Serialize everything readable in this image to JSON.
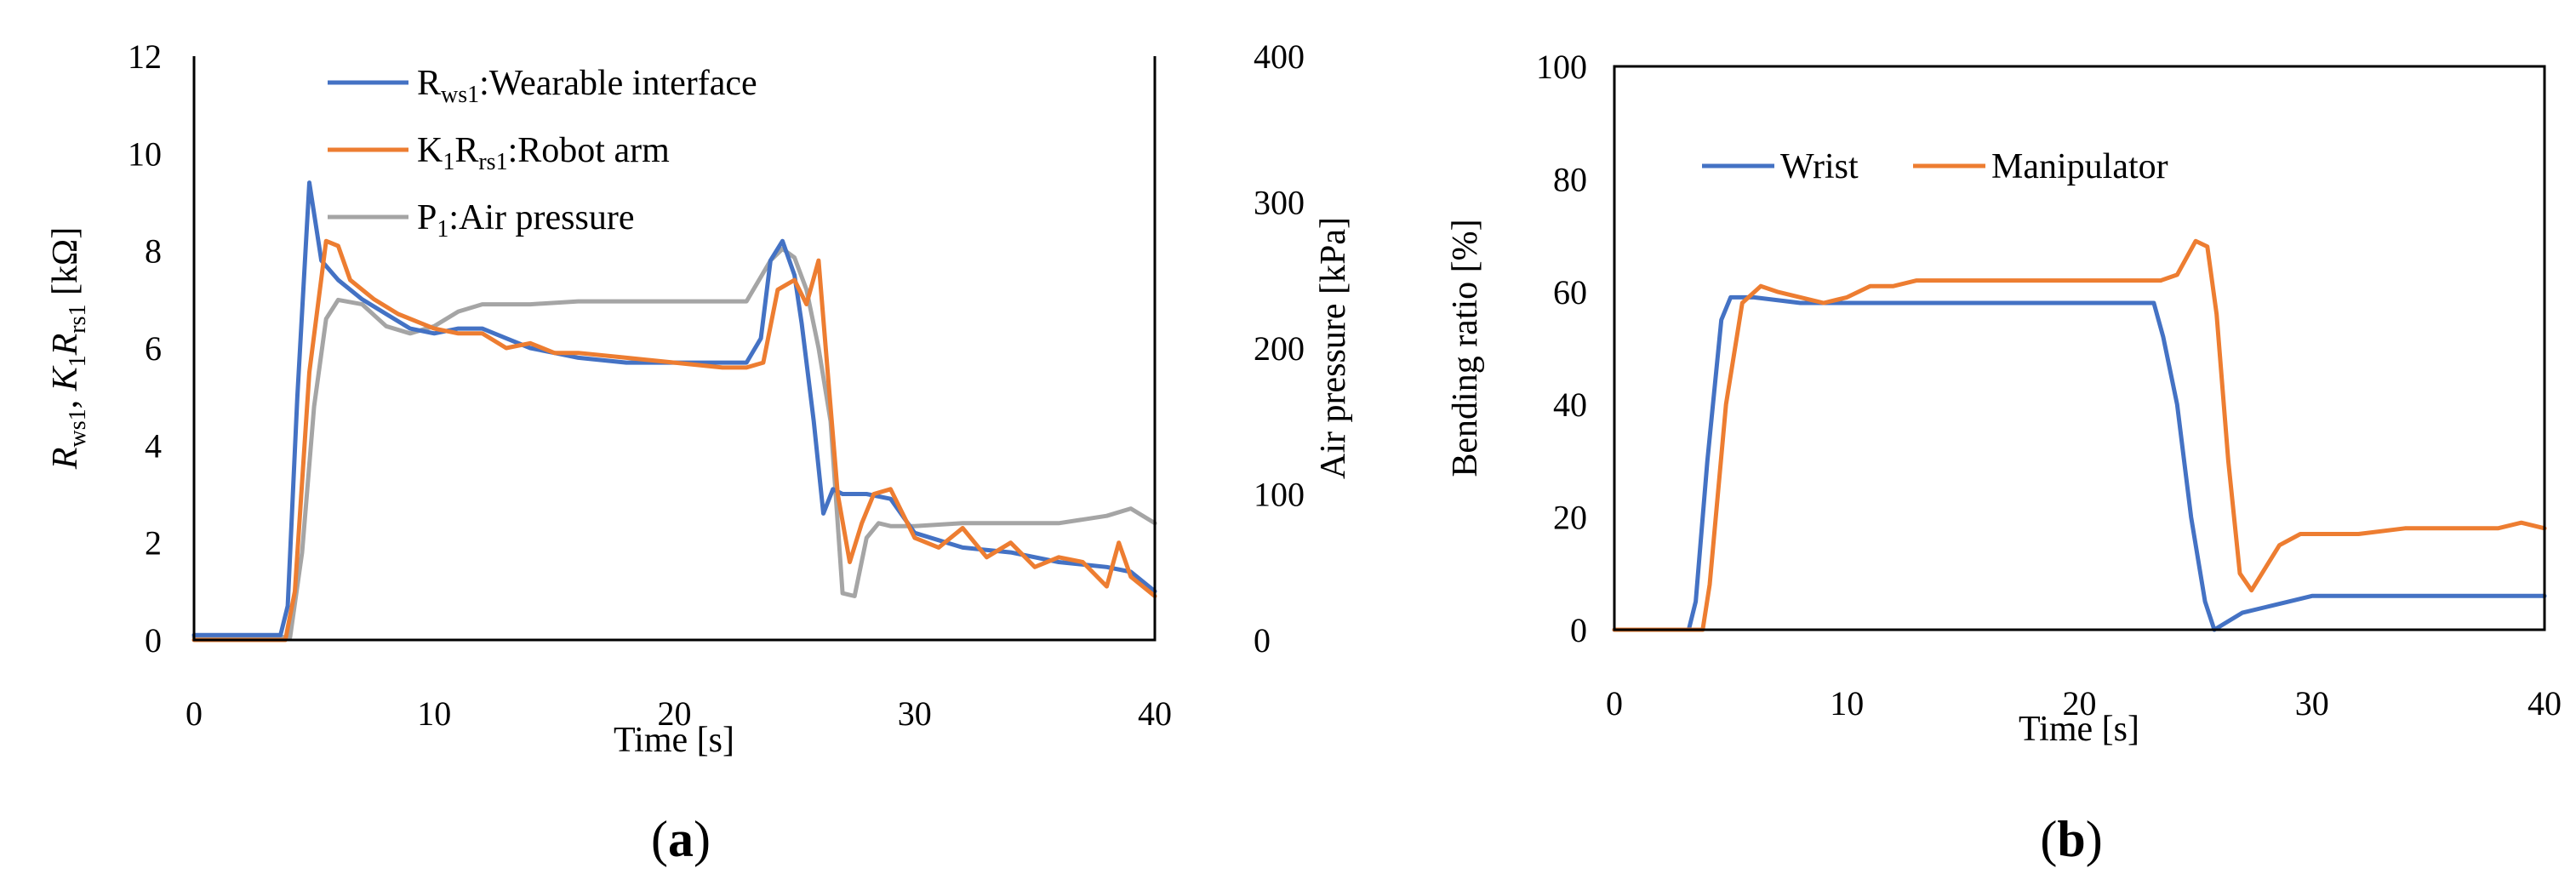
{
  "chart_data": [
    {
      "panel_label_open": "(",
      "panel_label": "a",
      "panel_label_close": ")",
      "type": "line",
      "title": "",
      "xlabel": "Time [s]",
      "ylabel_left": {
        "part1": "R",
        "sub1": "ws1",
        "part2": ", ",
        "part3": "K",
        "sub3": "1",
        "part4": "R",
        "sub4": "rs1",
        "part5": " [kΩ]"
      },
      "ylabel_right": "Air pressure [kPa]",
      "xlim": [
        0,
        40
      ],
      "ylim_left": [
        0,
        12
      ],
      "ylim_right": [
        0,
        400
      ],
      "xticks": [
        "0",
        "10",
        "20",
        "30",
        "40"
      ],
      "yticks_left": [
        "0",
        "2",
        "4",
        "6",
        "8",
        "10",
        "12"
      ],
      "yticks_right": [
        "0",
        "100",
        "200",
        "300",
        "400"
      ],
      "legend_position": "top-center",
      "series": [
        {
          "name": "Rws1:Wearable interface",
          "legend": {
            "main": "R",
            "sub": "ws1",
            "rest": ":Wearable interface"
          },
          "color": "#4472C4",
          "axis": "left",
          "x": [
            0,
            3.6,
            3.9,
            4.3,
            4.8,
            5.3,
            6,
            7,
            8,
            9,
            10,
            11,
            12,
            13,
            14,
            15,
            16,
            18,
            20,
            22,
            23,
            23.6,
            24,
            24.5,
            25,
            25.3,
            25.8,
            26.2,
            26.6,
            27,
            28,
            29,
            30,
            32,
            34,
            36,
            38,
            39,
            40
          ],
          "y": [
            0.1,
            0.1,
            0.7,
            5.0,
            9.4,
            7.8,
            7.4,
            7.0,
            6.7,
            6.4,
            6.3,
            6.4,
            6.4,
            6.2,
            6.0,
            5.9,
            5.8,
            5.7,
            5.7,
            5.7,
            5.7,
            6.2,
            7.8,
            8.2,
            7.5,
            6.5,
            4.5,
            2.6,
            3.1,
            3.0,
            3.0,
            2.9,
            2.2,
            1.9,
            1.8,
            1.6,
            1.5,
            1.4,
            1.0
          ]
        },
        {
          "name": "K1Rrs1:Robot arm",
          "legend": {
            "main": "K",
            "sub": "1",
            "main2": "R",
            "sub2": "rs1",
            "rest": ":Robot arm"
          },
          "color": "#ED7D31",
          "axis": "left",
          "x": [
            0,
            3.8,
            4.2,
            4.8,
            5.5,
            6,
            6.5,
            7.5,
            8.5,
            10,
            11,
            12,
            13,
            14,
            15,
            16,
            18,
            20,
            22,
            23,
            23.7,
            24.3,
            25,
            25.5,
            26,
            26.3,
            26.8,
            27.3,
            27.8,
            28.3,
            29,
            29.5,
            30,
            31,
            32,
            33,
            34,
            35,
            36,
            37,
            38,
            38.5,
            39,
            40
          ],
          "y": [
            0,
            0,
            1.0,
            5.5,
            8.2,
            8.1,
            7.4,
            7.0,
            6.7,
            6.4,
            6.3,
            6.3,
            6.0,
            6.1,
            5.9,
            5.9,
            5.8,
            5.7,
            5.6,
            5.6,
            5.7,
            7.2,
            7.4,
            6.9,
            7.8,
            6.0,
            3.0,
            1.6,
            2.4,
            3.0,
            3.1,
            2.6,
            2.1,
            1.9,
            2.3,
            1.7,
            2.0,
            1.5,
            1.7,
            1.6,
            1.1,
            2.0,
            1.3,
            0.9
          ]
        },
        {
          "name": "P1:Air pressure",
          "legend": {
            "main": "P",
            "sub": "1",
            "rest": ":Air pressure"
          },
          "color": "#A5A5A5",
          "axis": "right",
          "x": [
            0,
            4.0,
            4.5,
            5.0,
            5.5,
            6,
            7,
            8,
            9,
            10,
            11,
            12,
            14,
            16,
            18,
            20,
            22,
            23,
            24,
            24.5,
            25,
            25.5,
            26,
            26.5,
            27,
            27.5,
            28,
            28.5,
            29,
            30,
            32,
            34,
            36,
            38,
            39,
            40
          ],
          "y": [
            2,
            2,
            60,
            160,
            220,
            233,
            230,
            215,
            210,
            215,
            225,
            230,
            230,
            232,
            232,
            232,
            232,
            232,
            260,
            268,
            262,
            240,
            200,
            150,
            32,
            30,
            70,
            80,
            78,
            78,
            80,
            80,
            80,
            85,
            90,
            80
          ]
        }
      ]
    },
    {
      "panel_label_open": "(",
      "panel_label": "b",
      "panel_label_close": ")",
      "type": "line",
      "title": "",
      "xlabel": "Time [s]",
      "ylabel": "Bending ratio [%]",
      "xlim": [
        0,
        40
      ],
      "ylim": [
        0,
        100
      ],
      "xticks": [
        "0",
        "10",
        "20",
        "30",
        "40"
      ],
      "yticks": [
        "0",
        "20",
        "40",
        "60",
        "80",
        "100"
      ],
      "legend_position": "top-left",
      "series": [
        {
          "name": "Wrist",
          "color": "#4472C4",
          "x": [
            0,
            3.2,
            3.5,
            4.0,
            4.6,
            5.0,
            6,
            8,
            10,
            12,
            14,
            16,
            18,
            20,
            22,
            23.2,
            23.6,
            24.2,
            24.8,
            25.4,
            25.8,
            26.2,
            27,
            28,
            29,
            30,
            32,
            34,
            36,
            38,
            40
          ],
          "y": [
            0,
            0,
            5,
            30,
            55,
            59,
            59,
            58,
            58,
            58,
            58,
            58,
            58,
            58,
            58,
            58,
            52,
            40,
            20,
            5,
            0,
            1,
            3,
            4,
            5,
            6,
            6,
            6,
            6,
            6,
            6
          ]
        },
        {
          "name": "Manipulator",
          "color": "#ED7D31",
          "x": [
            0,
            3.8,
            4.1,
            4.8,
            5.5,
            6.3,
            7,
            8,
            9,
            10,
            11,
            12,
            13,
            14,
            16,
            18,
            20,
            22,
            23.5,
            24.2,
            25,
            25.5,
            25.9,
            26.4,
            26.9,
            27.4,
            28,
            28.6,
            29.5,
            30,
            32,
            34,
            36,
            38,
            39,
            40
          ],
          "y": [
            0,
            0,
            8,
            40,
            58,
            61,
            60,
            59,
            58,
            59,
            61,
            61,
            62,
            62,
            62,
            62,
            62,
            62,
            62,
            63,
            69,
            68,
            56,
            30,
            10,
            7,
            11,
            15,
            17,
            17,
            17,
            18,
            18,
            18,
            19,
            18
          ]
        }
      ]
    }
  ]
}
